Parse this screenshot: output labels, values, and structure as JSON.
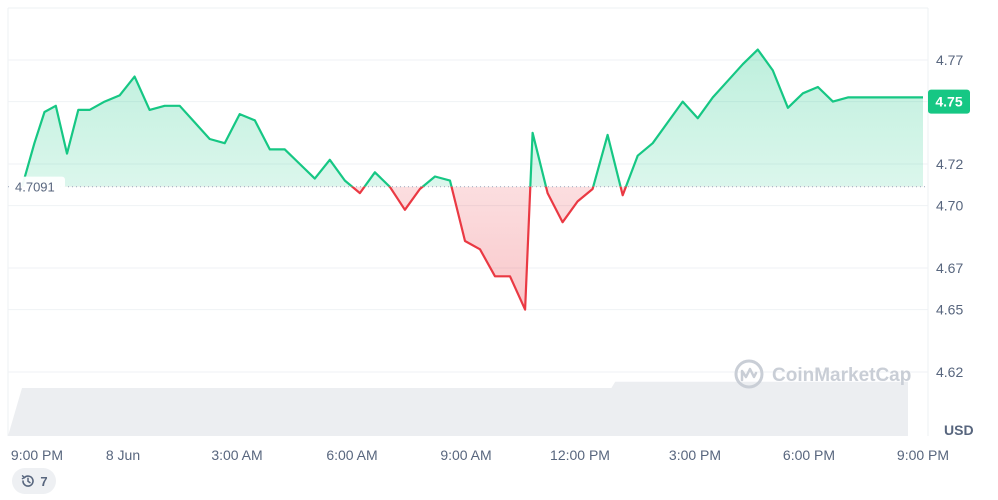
{
  "chart_data": {
    "type": "area",
    "reference_value": 4.7091,
    "reference_label": "4.7091",
    "current_value": 4.75,
    "current_label": "4.75",
    "y_ticks": [
      "4.77",
      "4.75",
      "4.72",
      "4.70",
      "4.67",
      "4.65",
      "4.62"
    ],
    "ylim": [
      4.6,
      4.78
    ],
    "x_ticks": [
      "9:00 PM",
      "8 Jun",
      "3:00 AM",
      "6:00 AM",
      "9:00 AM",
      "12:00 PM",
      "3:00 PM",
      "6:00 PM",
      "9:00 PM"
    ],
    "y_unit": "USD",
    "up_color": "#16c784",
    "down_color": "#ea3943",
    "series": [
      {
        "x_hours": [
          0,
          0.33,
          0.6,
          0.9,
          1.2,
          1.5,
          1.8,
          2.2,
          2.6,
          3.0,
          3.4,
          3.8,
          4.2,
          4.6,
          5.0,
          5.4,
          5.8,
          6.2,
          6.6,
          7.0,
          7.4,
          7.8,
          8.2,
          8.6,
          9.0,
          9.4,
          9.8,
          10.2,
          10.6,
          11.0,
          11.4,
          11.8,
          12.2,
          12.6,
          13.0,
          13.4,
          13.6,
          14.0,
          14.4,
          14.8,
          15.2,
          15.6,
          16.0,
          16.4,
          16.8,
          17.2,
          17.6,
          18.0,
          18.4,
          18.8,
          19.2,
          19.6,
          20.0,
          20.4,
          20.8,
          21.2,
          21.6,
          22.0,
          22.4,
          22.8,
          23.2,
          23.6,
          24.0
        ],
        "values": [
          4.709,
          4.73,
          4.745,
          4.748,
          4.725,
          4.746,
          4.746,
          4.75,
          4.753,
          4.762,
          4.746,
          4.748,
          4.748,
          4.74,
          4.732,
          4.73,
          4.744,
          4.741,
          4.727,
          4.727,
          4.72,
          4.713,
          4.722,
          4.712,
          4.706,
          4.716,
          4.709,
          4.698,
          4.708,
          4.714,
          4.712,
          4.683,
          4.679,
          4.666,
          4.666,
          4.65,
          4.735,
          4.706,
          4.692,
          4.702,
          4.708,
          4.734,
          4.705,
          4.724,
          4.73,
          4.74,
          4.75,
          4.742,
          4.752,
          4.76,
          4.768,
          4.775,
          4.765,
          4.747,
          4.754,
          4.757,
          4.75,
          4.752,
          4.752,
          4.752,
          4.752,
          4.752,
          4.752
        ]
      }
    ],
    "volume": {
      "x_hours": [
        0,
        15.7,
        15.8,
        23.6
      ],
      "values": [
        1.0,
        1.0,
        1.35,
        1.35
      ]
    },
    "grid": true,
    "watermark": "CoinMarketCap"
  },
  "history_badge": {
    "count": "7",
    "icon": "history-icon"
  }
}
